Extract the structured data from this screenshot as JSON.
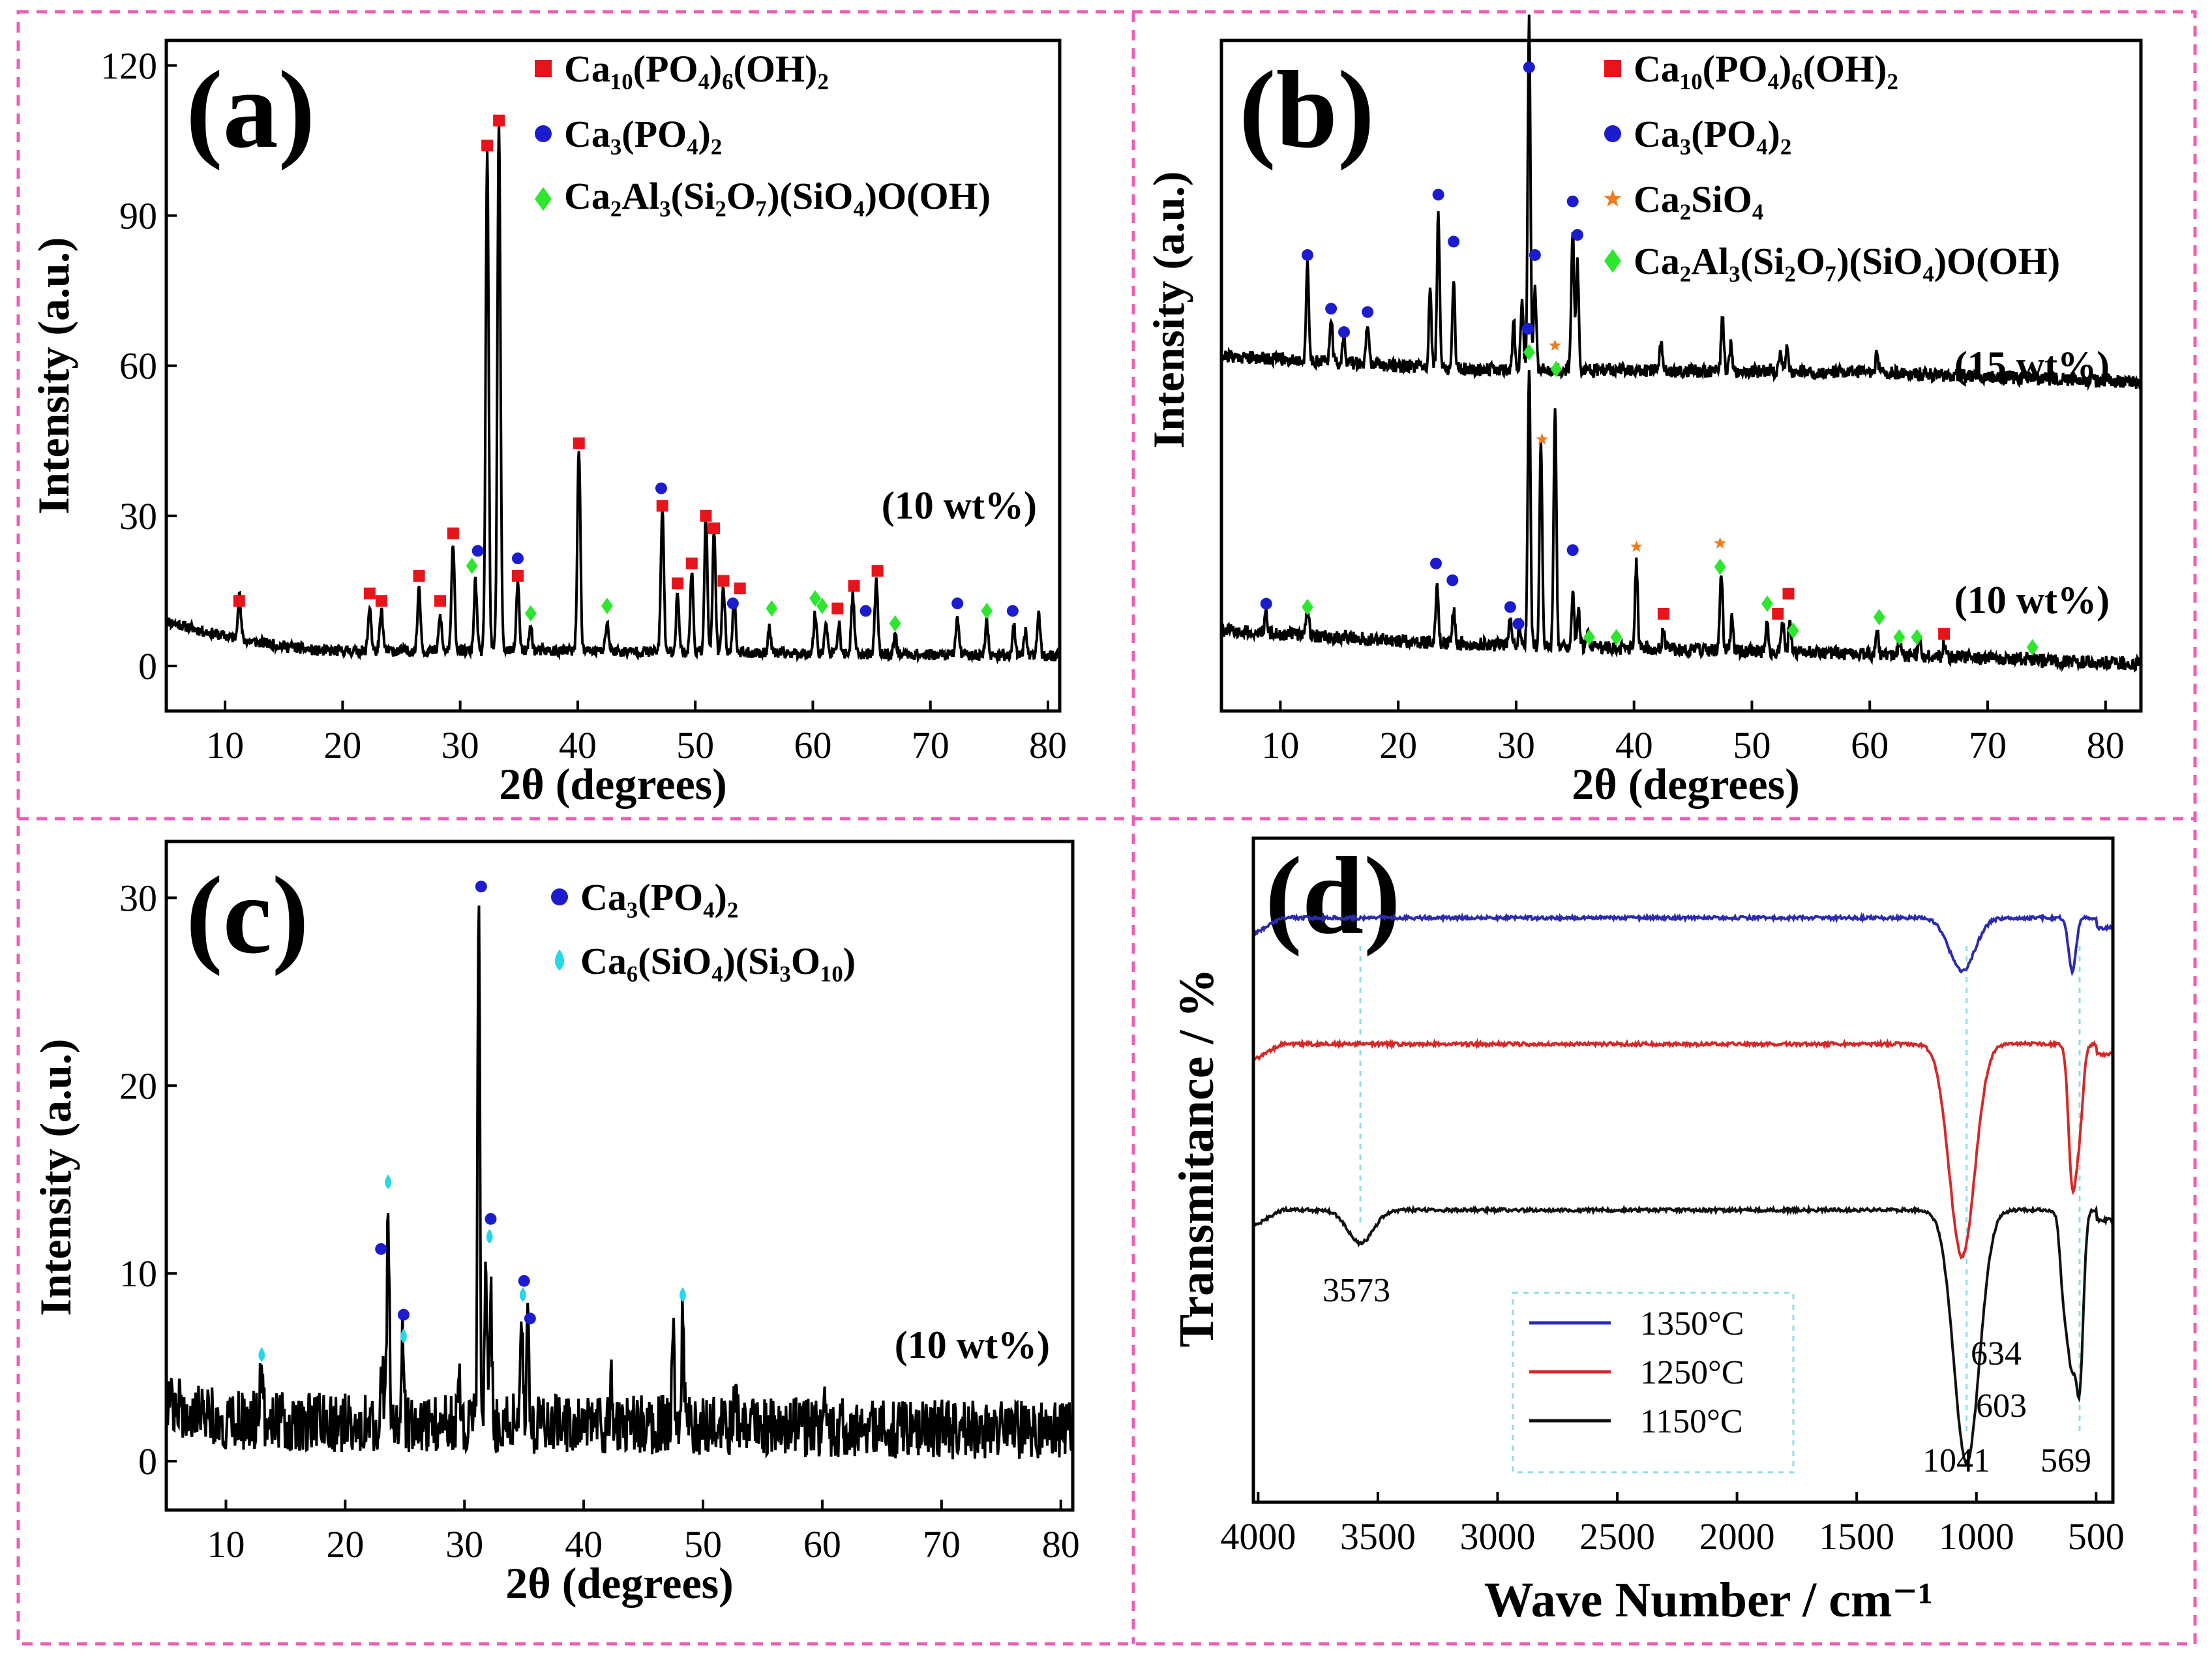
{
  "chart_data": [
    {
      "panel": "(a)",
      "type": "line",
      "xlabel": "2θ (degrees)",
      "ylabel": "Intensity (a.u.)",
      "xlim": [
        5,
        81
      ],
      "ylim": [
        -9,
        125
      ],
      "xticks": [
        10,
        20,
        30,
        40,
        50,
        60,
        70,
        80
      ],
      "yticks": [
        0,
        30,
        60,
        90,
        120
      ],
      "annotation": "(10 wt%)",
      "legend": [
        {
          "marker": "square",
          "color": "#e8141b",
          "label": "Ca₁₀(PO₄)₆(OH)₂"
        },
        {
          "marker": "circle",
          "color": "#1c1ccf",
          "label": "Ca₃(PO₄)₂"
        },
        {
          "marker": "diamond",
          "color": "#2ee62e",
          "label": "Ca₂Al₃(Si₂O₇)(SiO₄)O(OH)"
        }
      ],
      "background": [
        [
          5,
          9
        ],
        [
          8,
          7
        ],
        [
          12,
          5
        ],
        [
          18,
          3
        ],
        [
          25,
          3
        ],
        [
          40,
          3
        ],
        [
          60,
          2.5
        ],
        [
          81,
          2
        ]
      ],
      "peaks": [
        [
          11.2,
          9
        ],
        [
          22.3,
          9
        ],
        [
          23.3,
          8
        ],
        [
          26.5,
          13
        ],
        [
          28.3,
          7
        ],
        [
          29.4,
          22
        ],
        [
          31.3,
          14
        ],
        [
          32.3,
          100
        ],
        [
          33.3,
          106
        ],
        [
          34.9,
          14
        ],
        [
          36,
          5
        ],
        [
          40.1,
          41
        ],
        [
          42.5,
          6
        ],
        [
          47.2,
          29
        ],
        [
          48.5,
          12
        ],
        [
          49.7,
          16
        ],
        [
          50.9,
          27
        ],
        [
          51.6,
          24
        ],
        [
          52.4,
          13
        ],
        [
          53.3,
          11
        ],
        [
          56.3,
          5
        ],
        [
          60.2,
          8
        ],
        [
          61.1,
          6
        ],
        [
          62.2,
          6
        ],
        [
          63.4,
          12
        ],
        [
          65.4,
          15
        ],
        [
          67,
          4
        ],
        [
          72.3,
          8
        ],
        [
          74.8,
          7
        ],
        [
          77.1,
          6
        ],
        [
          78.1,
          5
        ],
        [
          79.2,
          8
        ]
      ],
      "markers": [
        {
          "shape": "square",
          "color": "#e8141b",
          "points": [
            [
              11.2,
              13
            ],
            [
              22.3,
              14.5
            ],
            [
              23.3,
              13
            ],
            [
              26.5,
              18
            ],
            [
              28.3,
              13
            ],
            [
              29.4,
              26.5
            ],
            [
              32.3,
              104
            ],
            [
              33.3,
              109
            ],
            [
              34.9,
              18
            ],
            [
              40.1,
              44.5
            ],
            [
              47.2,
              32
            ],
            [
              48.5,
              16.5
            ],
            [
              49.7,
              20.5
            ],
            [
              50.9,
              30
            ],
            [
              51.6,
              27.5
            ],
            [
              52.4,
              17
            ],
            [
              53.8,
              15.5
            ],
            [
              62.1,
              11.5
            ],
            [
              63.5,
              16
            ],
            [
              65.5,
              19
            ]
          ]
        },
        {
          "shape": "circle",
          "color": "#1c1ccf",
          "points": [
            [
              31.5,
              23
            ],
            [
              34.9,
              21.5
            ],
            [
              47.1,
              35.5
            ],
            [
              53.2,
              12.5
            ],
            [
              64.5,
              11
            ],
            [
              72.3,
              12.5
            ],
            [
              77,
              11
            ]
          ]
        },
        {
          "shape": "diamond",
          "color": "#2ee62e",
          "points": [
            [
              31,
              20
            ],
            [
              36,
              10.5
            ],
            [
              42.5,
              12
            ],
            [
              56.5,
              11.5
            ],
            [
              60.2,
              13.5
            ],
            [
              60.8,
              12
            ],
            [
              74.8,
              11
            ],
            [
              67,
              8.5
            ]
          ]
        }
      ]
    },
    {
      "panel": "(b)",
      "type": "line",
      "xlabel": "2θ (degrees)",
      "ylabel": "Intensity (a.u.)",
      "xlim": [
        5,
        83
      ],
      "ylim": [
        0,
        100
      ],
      "xticks": [
        10,
        20,
        30,
        40,
        50,
        60,
        70,
        80
      ],
      "yticks": [],
      "series": [
        {
          "name": "(15 wt%)",
          "baseline": 50,
          "background": [
            [
              5,
              3
            ],
            [
              25,
              1
            ],
            [
              60,
              0.5
            ],
            [
              83,
              -1
            ]
          ],
          "peaks": [
            [
              12.3,
              14
            ],
            [
              14.3,
              7
            ],
            [
              15.4,
              4
            ],
            [
              17.4,
              6
            ],
            [
              22.7,
              11
            ],
            [
              23.4,
              23
            ],
            [
              24.7,
              13
            ],
            [
              29.8,
              7
            ],
            [
              30.5,
              10
            ],
            [
              31.1,
              53
            ],
            [
              31.6,
              12
            ],
            [
              34.8,
              21
            ],
            [
              35.2,
              16
            ],
            [
              42.3,
              4
            ],
            [
              47.5,
              8
            ],
            [
              48.2,
              4
            ],
            [
              52.4,
              3
            ],
            [
              53,
              4
            ],
            [
              60.6,
              3
            ]
          ],
          "markers": [
            {
              "shape": "circle",
              "color": "#1c1ccf",
              "points": [
                [
                  12.3,
                  68
                ],
                [
                  14.3,
                  60
                ],
                [
                  15.4,
                  56.5
                ],
                [
                  17.4,
                  59.5
                ],
                [
                  23.4,
                  77
                ],
                [
                  24.7,
                  70
                ],
                [
                  31.1,
                  96
                ],
                [
                  31.6,
                  68
                ],
                [
                  34.8,
                  76
                ],
                [
                  35.2,
                  71
                ]
              ]
            }
          ]
        },
        {
          "name": "(10 wt%)",
          "baseline": 8,
          "background": [
            [
              5,
              4
            ],
            [
              25,
              2
            ],
            [
              60,
              0.5
            ],
            [
              83,
              -1
            ]
          ],
          "peaks": [
            [
              8.8,
              3
            ],
            [
              12.3,
              4
            ],
            [
              23.3,
              9
            ],
            [
              24.7,
              5
            ],
            [
              29.5,
              4
            ],
            [
              30.3,
              3
            ],
            [
              31.1,
              42
            ],
            [
              32.1,
              30
            ],
            [
              33.3,
              36
            ],
            [
              34.8,
              8
            ],
            [
              35.3,
              5
            ],
            [
              36.1,
              2
            ],
            [
              40.2,
              13
            ],
            [
              42.5,
              3
            ],
            [
              47.4,
              12
            ],
            [
              48.3,
              5
            ],
            [
              51.3,
              4
            ],
            [
              52.6,
              5
            ],
            [
              53.2,
              4
            ],
            [
              60.6,
              4
            ],
            [
              62.5,
              2
            ],
            [
              64.2,
              2
            ],
            [
              66.3,
              2
            ]
          ],
          "markers": [
            {
              "shape": "circle",
              "color": "#1c1ccf",
              "points": [
                [
                  8.8,
                  16
                ],
                [
                  23.2,
                  22
                ],
                [
                  24.6,
                  19.5
                ],
                [
                  29.5,
                  15.5
                ],
                [
                  30.2,
                  13
                ],
                [
                  31,
                  57
                ],
                [
                  34.8,
                  24
                ]
              ]
            },
            {
              "shape": "diamond",
              "color": "#2ee62e",
              "points": [
                [
                  12.3,
                  15.5
                ],
                [
                  31.1,
                  53.5
                ],
                [
                  33.4,
                  51
                ],
                [
                  36.2,
                  11
                ],
                [
                  38.5,
                  11
                ],
                [
                  47.3,
                  21.5
                ],
                [
                  51.3,
                  16
                ],
                [
                  53.5,
                  12
                ],
                [
                  60.8,
                  14
                ],
                [
                  62.5,
                  11
                ],
                [
                  64,
                  11
                ],
                [
                  73.8,
                  9.5
                ]
              ]
            },
            {
              "shape": "star",
              "color": "#f07a1c",
              "points": [
                [
                  32.2,
                  40.5
                ],
                [
                  33.3,
                  54.5
                ],
                [
                  40.2,
                  24.5
                ],
                [
                  47.3,
                  25
                ]
              ]
            },
            {
              "shape": "square",
              "color": "#e8141b",
              "points": [
                [
                  42.5,
                  14.5
                ],
                [
                  52.2,
                  14.5
                ],
                [
                  53.1,
                  17.5
                ],
                [
                  66.3,
                  11.5
                ]
              ]
            }
          ]
        }
      ],
      "legend": [
        {
          "marker": "square",
          "color": "#e8141b",
          "label": "Ca₁₀(PO₄)₆(OH)₂"
        },
        {
          "marker": "circle",
          "color": "#1c1ccf",
          "label": "Ca₃(PO₄)₂"
        },
        {
          "marker": "star",
          "color": "#f07a1c",
          "label": "Ca₂SiO₄"
        },
        {
          "marker": "diamond",
          "color": "#2ee62e",
          "label": "Ca₂Al₃(Si₂O₇)(SiO₄)O(OH)"
        }
      ]
    },
    {
      "panel": "(c)",
      "type": "line",
      "xlabel": "2θ (degrees)",
      "ylabel": "Intensity (a.u.)",
      "xlim": [
        5,
        81
      ],
      "ylim": [
        -2.6,
        33
      ],
      "xticks": [
        10,
        20,
        30,
        40,
        50,
        60,
        70,
        80
      ],
      "yticks": [
        0,
        10,
        20,
        30
      ],
      "annotation": "(10 wt%)",
      "legend": [
        {
          "marker": "circle",
          "color": "#1c1ccf",
          "label": "Ca₃(PO₄)₂"
        },
        {
          "marker": "drop",
          "color": "#26d7e6",
          "label": "Ca₆(SiO₄)(Si₃O₁₀)"
        }
      ],
      "background": [
        [
          5,
          3
        ],
        [
          10,
          2.2
        ],
        [
          20,
          2
        ],
        [
          40,
          2
        ],
        [
          81,
          1.6
        ]
      ],
      "peaks": [
        [
          13,
          4
        ],
        [
          23.1,
          3
        ],
        [
          23.6,
          12
        ],
        [
          24.8,
          5
        ],
        [
          29.6,
          2
        ],
        [
          31.2,
          28
        ],
        [
          31.8,
          9
        ],
        [
          32.2,
          7
        ],
        [
          34.8,
          6
        ],
        [
          35.3,
          5
        ],
        [
          42.3,
          3
        ],
        [
          47.5,
          6
        ],
        [
          48.3,
          6
        ],
        [
          52.7,
          2
        ],
        [
          60.3,
          2
        ]
      ],
      "markers": [
        {
          "shape": "circle",
          "color": "#1c1ccf",
          "points": [
            [
              23,
              11.3
            ],
            [
              24.9,
              7.8
            ],
            [
              31.4,
              30.6
            ],
            [
              32.2,
              12.9
            ],
            [
              35,
              9.6
            ],
            [
              35.5,
              7.6
            ]
          ]
        },
        {
          "shape": "drop",
          "color": "#26d7e6",
          "points": [
            [
              13,
              5.6
            ],
            [
              23.6,
              14.8
            ],
            [
              24.9,
              6.6
            ],
            [
              32.1,
              11.9
            ],
            [
              34.9,
              8.8
            ],
            [
              48.3,
              8.8
            ]
          ]
        }
      ]
    },
    {
      "panel": "(d)",
      "type": "line",
      "xlabel": "Wave Number / cm⁻¹",
      "ylabel": "Transmitance / %",
      "xlim": [
        4020,
        430
      ],
      "ylim": [
        0,
        100
      ],
      "xticks": [
        4000,
        3500,
        3000,
        2500,
        2000,
        1500,
        1000,
        500
      ],
      "yticks": [],
      "series": [
        {
          "name": "1350°C",
          "color": "#2b2bb0",
          "level": 88,
          "bands": [
            [
              1060,
              8
            ],
            [
              600,
              8
            ]
          ]
        },
        {
          "name": "1250°C",
          "color": "#d62828",
          "level": 69,
          "bands": [
            [
              1060,
              32
            ],
            [
              600,
              20
            ],
            [
              570,
              12
            ]
          ]
        },
        {
          "name": "1150°C",
          "color": "#111111",
          "level": 44,
          "bands": [
            [
              3573,
              5
            ],
            [
              1041,
              38
            ],
            [
              634,
              13
            ],
            [
              603,
              20
            ],
            [
              569,
              26
            ]
          ]
        }
      ],
      "peak_labels": [
        "3573",
        "1041",
        "634",
        "603",
        "569"
      ],
      "legend": [
        {
          "label": "1350°C",
          "color": "#2b2bb0"
        },
        {
          "label": "1250°C",
          "color": "#d62828"
        },
        {
          "label": "1150°C",
          "color": "#111111"
        }
      ]
    }
  ]
}
